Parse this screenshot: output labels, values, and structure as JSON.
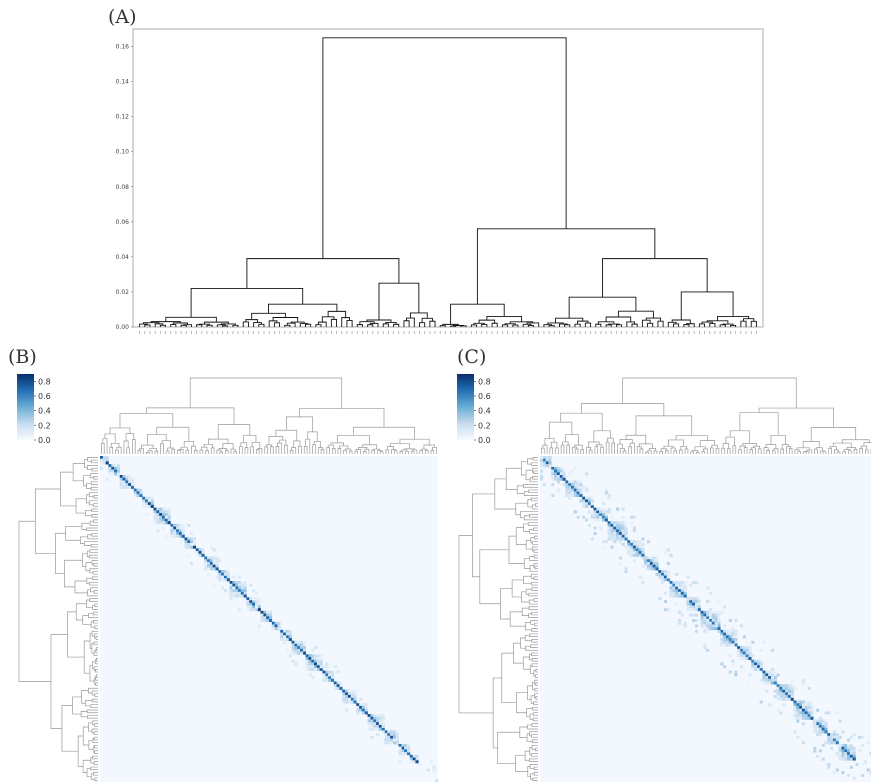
{
  "panels": {
    "a_label": "(A)",
    "b_label": "(B)",
    "c_label": "(C)"
  },
  "chart_data": [
    {
      "type": "dendrogram",
      "panel": "(A)",
      "title": "",
      "xlabel": "",
      "ylabel": "",
      "ylim": [
        0,
        0.17
      ],
      "y_ticks": [
        "0.00",
        "0.02",
        "0.04",
        "0.06",
        "0.08",
        "0.10",
        "0.12",
        "0.14",
        "0.16"
      ],
      "leaf_count": 120,
      "links": [
        {
          "left": "cluster-left",
          "right": "cluster-right",
          "height": 0.165
        },
        {
          "left": "left-a",
          "right": "left-b",
          "height": 0.039
        },
        {
          "left": "right-a",
          "right": "right-b",
          "height": 0.056
        },
        {
          "left": "left-a1",
          "right": "left-a2",
          "height": 0.022
        },
        {
          "left": "left-b1",
          "right": "left-b2",
          "height": 0.025
        },
        {
          "left": "right-a1",
          "right": "right-a2",
          "height": 0.013
        },
        {
          "left": "right-b1",
          "right": "right-b2",
          "height": 0.039
        },
        {
          "left": "right-b1a",
          "right": "right-b1b",
          "height": 0.017
        },
        {
          "left": "right-b2a",
          "right": "right-b2b",
          "height": 0.02
        }
      ],
      "grid": false
    },
    {
      "type": "heatmap",
      "panel": "(B)",
      "title": "",
      "colorbar_ticks": [
        "0.0",
        "0.2",
        "0.4",
        "0.6",
        "0.8"
      ],
      "colorbar_range": [
        0,
        0.9
      ],
      "colormap": "Blues",
      "matrix_size": 120,
      "diagonal_value": 0.8,
      "block_sizes": [
        3,
        4,
        5,
        3,
        4,
        6,
        5,
        4,
        3,
        5,
        4,
        6,
        5,
        4,
        3,
        4,
        5,
        6,
        4,
        3,
        5,
        4,
        6,
        5,
        4,
        3
      ]
    },
    {
      "type": "heatmap",
      "panel": "(C)",
      "title": "",
      "colorbar_ticks": [
        "0.0",
        "0.2",
        "0.4",
        "0.6",
        "0.8"
      ],
      "colorbar_range": [
        0,
        0.9
      ],
      "colormap": "Blues",
      "matrix_size": 120,
      "diagonal_value": 0.75,
      "block_sizes": [
        4,
        5,
        6,
        4,
        5,
        7,
        6,
        5,
        4,
        6,
        5,
        7,
        6,
        5,
        4,
        5,
        6,
        7,
        5,
        4,
        6
      ]
    }
  ]
}
